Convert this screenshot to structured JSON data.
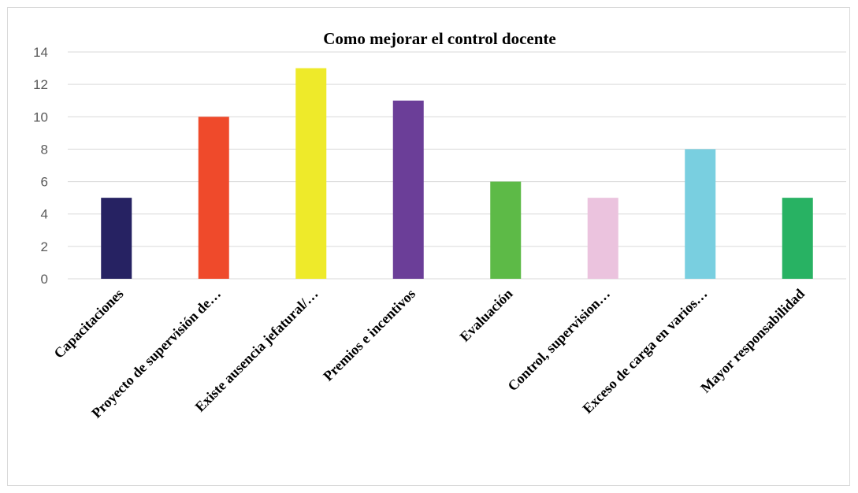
{
  "chart_data": {
    "type": "bar",
    "title": "Como mejorar el control docente",
    "xlabel": "",
    "ylabel": "",
    "ylim": [
      0,
      14
    ],
    "yticks": [
      0,
      2,
      4,
      6,
      8,
      10,
      12,
      14
    ],
    "grid": true,
    "legend": "none",
    "categories": [
      "Capacitaciones",
      "Proyecto de supervisión de…",
      "Existe ausencia jefatural/…",
      "Premios e incentivos",
      "Evaluación",
      "Control, supervision…",
      "Exceso de carga en varios…",
      "Mayor responsabilidad"
    ],
    "values": [
      5,
      10,
      13,
      11,
      6,
      5,
      8,
      5
    ],
    "colors": [
      "#262262",
      "#ef4a2b",
      "#eeea2a",
      "#6b3e98",
      "#5dba47",
      "#ebc3de",
      "#79cfe0",
      "#28b263"
    ]
  }
}
